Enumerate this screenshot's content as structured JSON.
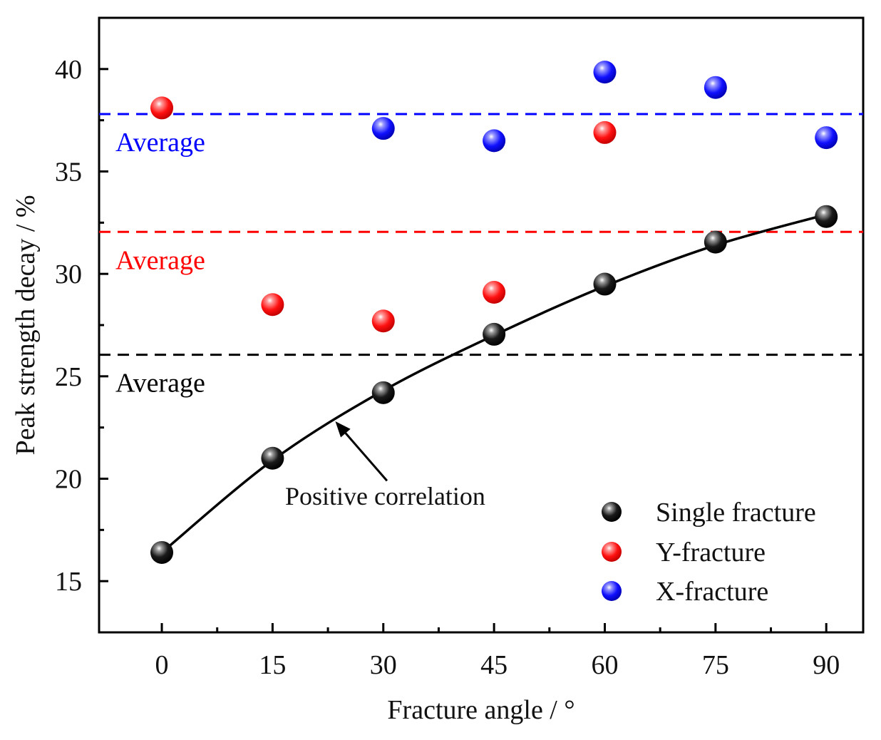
{
  "chart_data": {
    "type": "scatter",
    "title": "",
    "xlabel": "Fracture angle / °",
    "ylabel": "Peak strength decay / %",
    "xlim": [
      -8.5,
      95
    ],
    "ylim": [
      12.5,
      42.5
    ],
    "xticks": [
      0,
      15,
      30,
      45,
      60,
      75,
      90
    ],
    "yticks": [
      15,
      20,
      25,
      30,
      35,
      40
    ],
    "tick_labels_x": [
      "0",
      "15",
      "30",
      "45",
      "60",
      "75",
      "90"
    ],
    "tick_labels_y": [
      "15",
      "20",
      "25",
      "30",
      "35",
      "40"
    ],
    "series": [
      {
        "name": "Single fracture",
        "key": "single",
        "color": "#000000",
        "x": [
          0,
          15,
          30,
          45,
          60,
          75,
          90
        ],
        "y": [
          16.4,
          21.0,
          24.2,
          27.05,
          29.5,
          31.55,
          32.8
        ]
      },
      {
        "name": "Y-fracture",
        "key": "y",
        "color": "#ff0000",
        "x": [
          0,
          15,
          30,
          45,
          60
        ],
        "y": [
          38.1,
          28.5,
          27.7,
          29.1,
          36.9
        ]
      },
      {
        "name": "X-fracture",
        "key": "x",
        "color": "#0000ff",
        "x": [
          30,
          45,
          60,
          75,
          90
        ],
        "y": [
          37.1,
          36.5,
          39.85,
          39.1,
          36.65
        ]
      }
    ],
    "fit_curve": {
      "color": "#000000",
      "x": [
        0,
        15,
        30,
        45,
        60,
        75,
        90
      ],
      "y": [
        16.4,
        20.9,
        24.3,
        27.0,
        29.4,
        31.4,
        32.9
      ]
    },
    "averages": [
      {
        "label": "Average",
        "value": 37.8,
        "color": "#0000ff"
      },
      {
        "label": "Average",
        "value": 32.05,
        "color": "#ff0000"
      },
      {
        "label": "Average",
        "value": 26.05,
        "color": "#000000"
      }
    ],
    "annotation": {
      "text": "Positive correlation",
      "arrow_target": [
        23.5,
        22.8
      ],
      "arrow_start": [
        30.5,
        19.9
      ]
    },
    "legend": {
      "placement": "bottom-right",
      "entries": [
        "Single fracture",
        "Y-fracture",
        "X-fracture"
      ]
    },
    "grid": false
  }
}
